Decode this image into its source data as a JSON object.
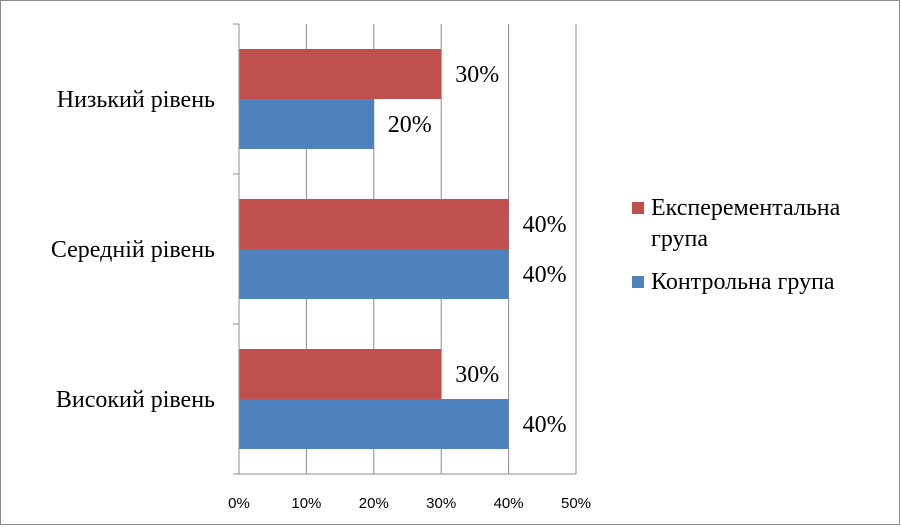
{
  "chart_data": {
    "type": "bar",
    "orientation": "horizontal",
    "categories": [
      "Низький рівень",
      "Середній рівень",
      "Високий рівень"
    ],
    "series": [
      {
        "name": "Експерементальна група",
        "legend_lines": [
          "Експерементальна",
          "група"
        ],
        "color": "#c0504d",
        "values": [
          30,
          40,
          30
        ],
        "labels": [
          "30%",
          "40%",
          "30%"
        ]
      },
      {
        "name": "Контрольна група",
        "legend_lines": [
          "Контрольна група"
        ],
        "color": "#4f81bd",
        "values": [
          20,
          40,
          40
        ],
        "labels": [
          "20%",
          "40%",
          "40%"
        ]
      }
    ],
    "xlim": [
      0,
      50
    ],
    "x_ticks": [
      0,
      10,
      20,
      30,
      40,
      50
    ],
    "x_tick_labels": [
      "0%",
      "10%",
      "20%",
      "30%",
      "40%",
      "50%"
    ],
    "grid": true,
    "legend_position": "right"
  }
}
